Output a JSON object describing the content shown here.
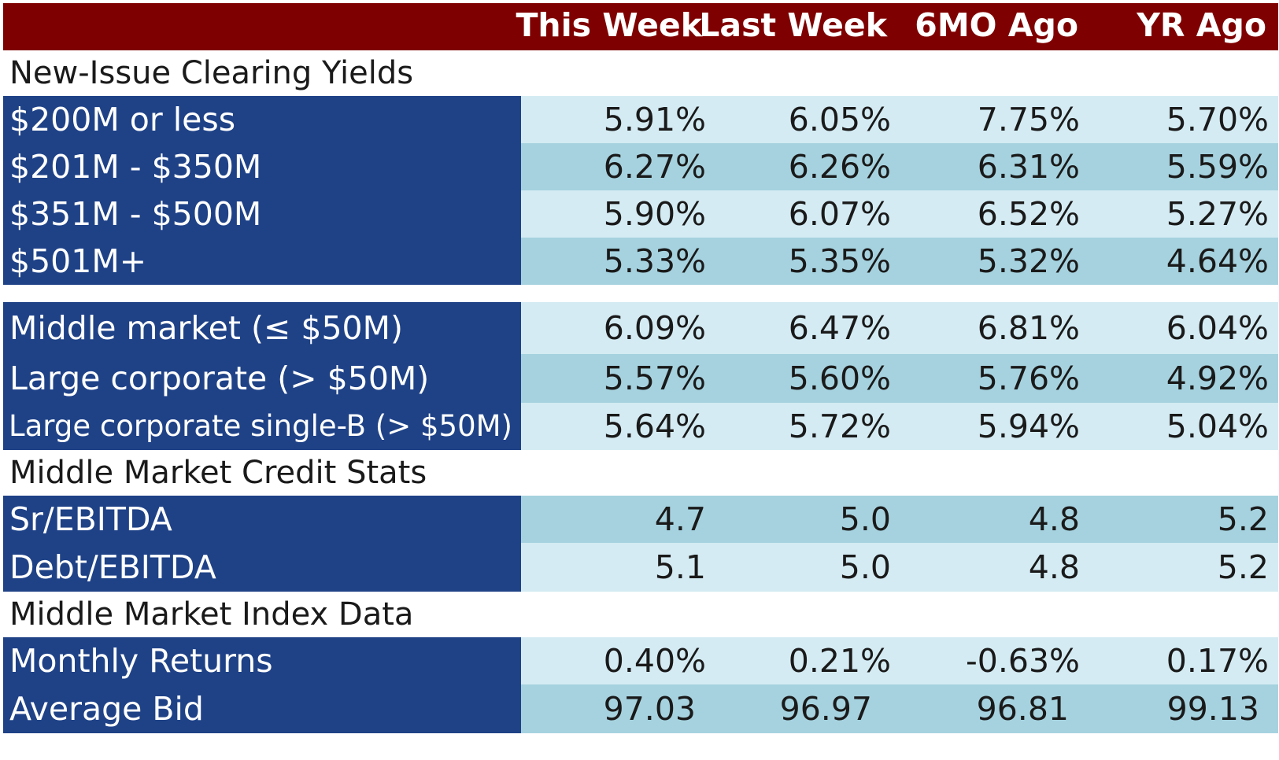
{
  "header": [
    "This Week",
    "Last Week",
    "6MO Ago",
    "YR Ago"
  ],
  "sections": {
    "new_issue": "New-Issue Clearing Yields",
    "credit_stats": "Middle Market Credit Stats",
    "index_data": "Middle Market Index Data"
  },
  "rows": [
    {
      "label": "$200M or less",
      "values": [
        "5.91%",
        "6.05%",
        "7.75%",
        "5.70%"
      ]
    },
    {
      "label": "$201M - $350M",
      "values": [
        "6.27%",
        "6.26%",
        "6.31%",
        "5.59%"
      ]
    },
    {
      "label": "$351M - $500M",
      "values": [
        "5.90%",
        "6.07%",
        "6.52%",
        "5.27%"
      ]
    },
    {
      "label": "$501M+",
      "values": [
        "5.33%",
        "5.35%",
        "5.32%",
        "4.64%"
      ]
    },
    {
      "label": "Middle market (≤ $50M)",
      "values": [
        "6.09%",
        "6.47%",
        "6.81%",
        "6.04%"
      ]
    },
    {
      "label": "Large corporate (> $50M)",
      "values": [
        "5.57%",
        "5.60%",
        "5.76%",
        "4.92%"
      ]
    },
    {
      "label": "Large corporate single-B (> $50M)",
      "values": [
        "5.64%",
        "5.72%",
        "5.94%",
        "5.04%"
      ]
    },
    {
      "label": "Sr/EBITDA",
      "values": [
        "4.7",
        "5.0",
        "4.8",
        "5.2"
      ]
    },
    {
      "label": "Debt/EBITDA",
      "values": [
        "5.1",
        "5.0",
        "4.8",
        "5.2"
      ]
    },
    {
      "label": "Monthly Returns",
      "values": [
        "0.40%",
        "0.21%",
        "-0.63%",
        "0.17%"
      ]
    },
    {
      "label": "Average Bid",
      "values": [
        "97.03",
        "96.97",
        "96.81",
        "99.13"
      ]
    }
  ]
}
